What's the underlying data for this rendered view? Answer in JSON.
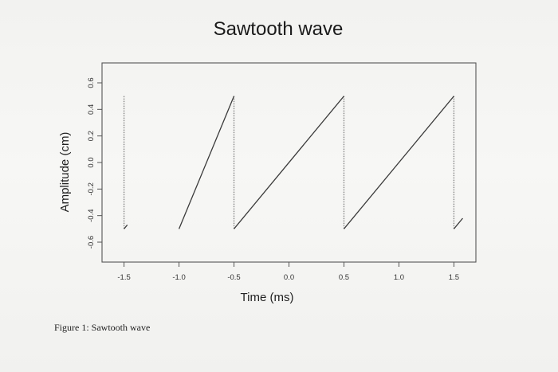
{
  "chart_data": {
    "type": "line",
    "title": "Sawtooth wave",
    "xlabel": "Time (ms)",
    "ylabel": "Amplitude (cm)",
    "xlim": [
      -1.7,
      1.7
    ],
    "ylim": [
      -0.75,
      0.75
    ],
    "x_ticks": [
      -1.5,
      -1.0,
      -0.5,
      0.0,
      0.5,
      1.0,
      1.5
    ],
    "x_tick_labels": [
      "-1.5",
      "-1.0",
      "-0.5",
      "0.0",
      "0.5",
      "1.0",
      "1.5"
    ],
    "y_ticks": [
      -0.6,
      -0.4,
      -0.2,
      0.0,
      0.2,
      0.4,
      0.6
    ],
    "y_tick_labels": [
      "-0.6",
      "-0.4",
      "-0.2",
      "0.0",
      "0.2",
      "0.4",
      "0.6"
    ],
    "grid": false,
    "series": [
      {
        "style": "solid",
        "segments": [
          {
            "x": [
              -1.5,
              -1.5
            ],
            "y": [
              -0.5,
              0.5
            ]
          },
          {
            "x": [
              -1.0,
              -0.5
            ],
            "y": [
              -0.5,
              0.5
            ]
          },
          {
            "x": [
              -0.5,
              0.5
            ],
            "y": [
              -0.5,
              0.5
            ]
          },
          {
            "x": [
              0.5,
              1.5
            ],
            "y": [
              -0.5,
              0.5
            ]
          },
          {
            "x": [
              1.5,
              1.58
            ],
            "y": [
              -0.5,
              -0.42
            ]
          }
        ]
      }
    ],
    "jumps": {
      "style": "dotted",
      "x": [
        -1.5,
        -0.5,
        0.5,
        1.5
      ],
      "y_from": 0.5,
      "y_to": -0.5
    },
    "line_color": "#3a3a3a"
  },
  "caption": "Figure 1: Sawtooth wave"
}
